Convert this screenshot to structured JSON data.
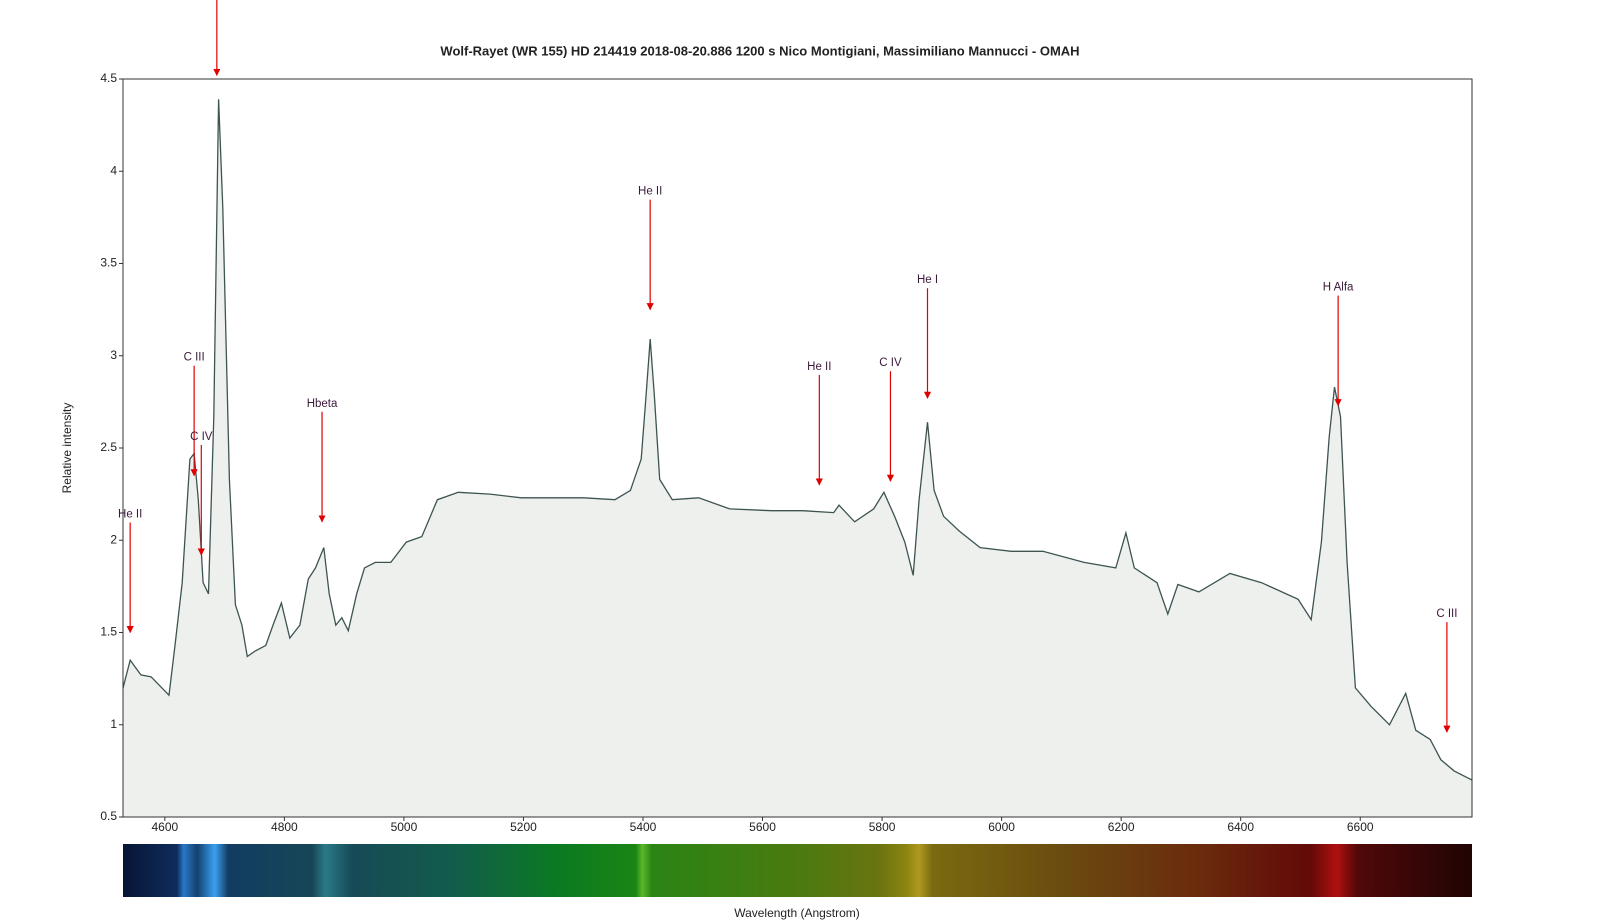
{
  "chart_data": {
    "type": "line",
    "title": "Wolf-Rayet (WR 155) HD 214419    2018-08-20.886   1200 s   Nico Montigiani, Massimiliano Mannucci - OMAH",
    "xlabel": "Wavelength (Angstrom)",
    "ylabel": "Relative intensity",
    "color": "#3d5451",
    "fill": "#eef0ee",
    "xlim": [
      4530,
      6787
    ],
    "ylim": [
      0.5,
      4.5
    ],
    "xticks": [
      4600,
      4800,
      5000,
      5200,
      5400,
      5600,
      5800,
      6000,
      6200,
      6400,
      6600
    ],
    "yticks": [
      0.5,
      1,
      1.5,
      2,
      2.5,
      3,
      3.5,
      4,
      4.5
    ],
    "x": [
      4530,
      4542,
      4560,
      4577,
      4595,
      4607,
      4617,
      4629,
      4642,
      4649,
      4656,
      4664,
      4673,
      4682,
      4690,
      4697,
      4708,
      4718,
      4729,
      4738,
      4751,
      4769,
      4781,
      4795,
      4809,
      4826,
      4840,
      4852,
      4866,
      4875,
      4886,
      4896,
      4907,
      4921,
      4934,
      4952,
      4978,
      5004,
      5030,
      5056,
      5091,
      5144,
      5196,
      5248,
      5301,
      5353,
      5379,
      5397,
      5405,
      5412,
      5419,
      5428,
      5449,
      5493,
      5545,
      5615,
      5667,
      5719,
      5728,
      5754,
      5786,
      5803,
      5821,
      5838,
      5852,
      5862,
      5876,
      5887,
      5903,
      5929,
      5964,
      6016,
      6069,
      6138,
      6191,
      6208,
      6222,
      6260,
      6278,
      6295,
      6330,
      6382,
      6435,
      6496,
      6518,
      6535,
      6548,
      6557,
      6567,
      6578,
      6592,
      6618,
      6649,
      6676,
      6693,
      6717,
      6735,
      6757,
      6787
    ],
    "values": [
      1.2,
      1.35,
      1.27,
      1.26,
      1.2,
      1.16,
      1.43,
      1.77,
      2.44,
      2.47,
      2.22,
      1.77,
      1.71,
      2.67,
      4.39,
      3.8,
      2.33,
      1.65,
      1.54,
      1.37,
      1.4,
      1.43,
      1.54,
      1.66,
      1.47,
      1.54,
      1.79,
      1.85,
      1.96,
      1.71,
      1.54,
      1.58,
      1.51,
      1.71,
      1.85,
      1.88,
      1.88,
      1.99,
      2.02,
      2.22,
      2.26,
      2.25,
      2.23,
      2.23,
      2.23,
      2.22,
      2.27,
      2.44,
      2.78,
      3.09,
      2.78,
      2.33,
      2.22,
      2.23,
      2.17,
      2.16,
      2.16,
      2.15,
      2.19,
      2.1,
      2.17,
      2.26,
      2.13,
      1.99,
      1.81,
      2.22,
      2.64,
      2.27,
      2.13,
      2.05,
      1.96,
      1.94,
      1.94,
      1.88,
      1.85,
      2.04,
      1.85,
      1.77,
      1.6,
      1.76,
      1.72,
      1.82,
      1.77,
      1.68,
      1.57,
      1.99,
      2.56,
      2.83,
      2.67,
      1.88,
      1.2,
      1.1,
      1.0,
      1.17,
      0.97,
      0.92,
      0.81,
      0.75,
      0.7
    ],
    "annotations": [
      {
        "x": 4687,
        "y": 4.52
      },
      {
        "text": "He II",
        "x": 4542,
        "y": 1.5
      },
      {
        "text": "C III",
        "x": 4649,
        "y": 2.35
      },
      {
        "text": "C IV",
        "x": 4661,
        "y": 1.92
      },
      {
        "text": "Hbeta",
        "x": 4863,
        "y": 2.1
      },
      {
        "text": "He II",
        "x": 5412,
        "y": 3.25
      },
      {
        "text": "He II",
        "x": 5695,
        "y": 2.3
      },
      {
        "text": "C IV",
        "x": 5814,
        "y": 2.32
      },
      {
        "text": "He I",
        "x": 5876,
        "y": 2.77
      },
      {
        "text": "H Alfa",
        "x": 6563,
        "y": 2.73
      },
      {
        "text": "C III",
        "x": 6745,
        "y": 0.96
      }
    ]
  }
}
